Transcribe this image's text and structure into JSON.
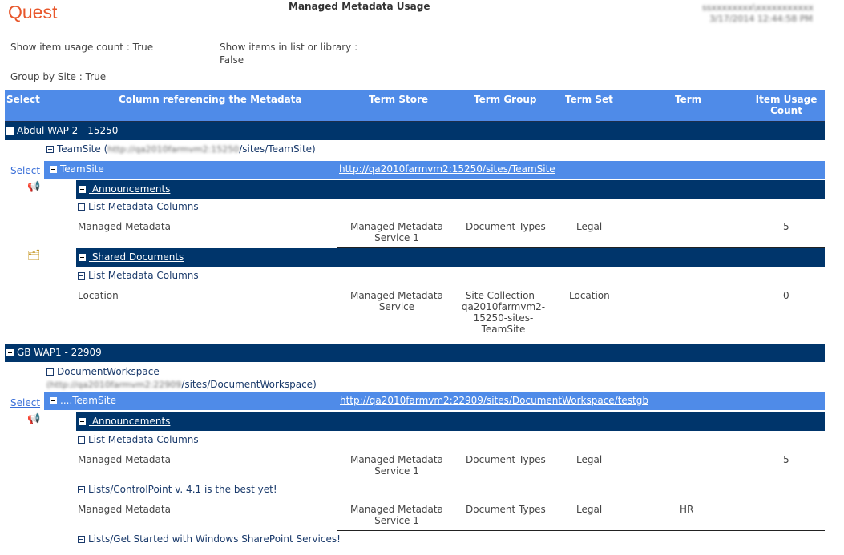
{
  "logo": "Quest",
  "title": "Managed Metadata Usage",
  "user": "ssxxxxxxxx\\xxxxxxxxxxx",
  "datetime": "3/17/2014 12:44:58 PM",
  "options": {
    "usage": "Show item usage count : True",
    "items": "Show items in list or library :",
    "items_val": "False",
    "group": "Group by Site : True"
  },
  "columns": [
    "Select",
    "Column referencing the Metadata",
    "Term Store",
    "Term Group",
    "Term Set",
    "Term",
    "Item Usage Count"
  ],
  "select_label": "Select",
  "list_cols": "List Metadata Columns",
  "groups": [
    {
      "name": "Abdul WAP 2 - 15250",
      "site": "TeamSite (",
      "site_blur": "http://qa2010farmvm2:15250",
      "site_rest": "/sites/TeamSite)",
      "web": "TeamSite",
      "web_url": "http://qa2010farmvm2:15250/sites/TeamSite",
      "lists": [
        {
          "name": " Announcements",
          "icon": "megaphone-icon",
          "row": {
            "col": "Managed Metadata",
            "store": "Managed Metadata Service 1",
            "group": "Document Types",
            "set": "Legal",
            "term": "",
            "count": "5"
          }
        },
        {
          "name": " Shared Documents",
          "icon": "document-library-icon",
          "row": {
            "col": "Location",
            "store": "Managed Metadata Service",
            "group": "Site Collection - qa2010farmvm2-15250-sites-TeamSite",
            "set": "Location",
            "term": "",
            "count": "0"
          }
        }
      ]
    },
    {
      "name": "GB WAP1 - 22909",
      "site": "DocumentWorkspace",
      "site_blur": "(http://qa2010farmvm2:22909",
      "site_rest": "/sites/DocumentWorkspace)",
      "web": "....TeamSite",
      "web_url": "http://qa2010farmvm2:22909/sites/DocumentWorkspace/testgb",
      "lists": [
        {
          "name": " Announcements",
          "icon": "megaphone-icon",
          "row": {
            "col": "Managed Metadata",
            "store": "Managed Metadata Service 1",
            "group": "Document Types",
            "set": "Legal",
            "term": "",
            "count": "5"
          }
        },
        {
          "name": "Lists/ControlPoint v. 4.1 is the best yet!",
          "row": {
            "col": "Managed Metadata",
            "store": "Managed Metadata Service 1",
            "group": "Document Types",
            "set": "Legal",
            "term": "HR",
            "count": ""
          }
        },
        {
          "name": "Lists/Get Started with Windows SharePoint Services!"
        }
      ]
    }
  ]
}
